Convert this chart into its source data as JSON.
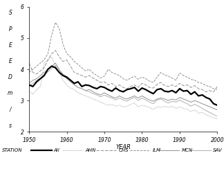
{
  "years": [
    1950,
    1951,
    1952,
    1953,
    1954,
    1955,
    1956,
    1957,
    1958,
    1959,
    1960,
    1961,
    1962,
    1963,
    1964,
    1965,
    1966,
    1967,
    1968,
    1969,
    1970,
    1971,
    1972,
    1973,
    1974,
    1975,
    1976,
    1977,
    1978,
    1979,
    1980,
    1981,
    1982,
    1983,
    1984,
    1985,
    1986,
    1987,
    1988,
    1989,
    1990,
    1991,
    1992,
    1993,
    1994,
    1995,
    1996,
    1997,
    1998,
    1999,
    2000
  ],
  "All": [
    3.5,
    3.45,
    3.6,
    3.7,
    3.8,
    4.0,
    4.1,
    4.05,
    3.9,
    3.8,
    3.75,
    3.65,
    3.55,
    3.6,
    3.45,
    3.5,
    3.48,
    3.42,
    3.38,
    3.45,
    3.42,
    3.35,
    3.3,
    3.4,
    3.32,
    3.28,
    3.35,
    3.38,
    3.42,
    3.3,
    3.4,
    3.35,
    3.28,
    3.22,
    3.35,
    3.38,
    3.3,
    3.28,
    3.32,
    3.25,
    3.38,
    3.3,
    3.32,
    3.2,
    3.28,
    3.15,
    3.18,
    3.1,
    3.05,
    2.9,
    2.85
  ],
  "AHN": [
    3.3,
    3.2,
    3.35,
    3.45,
    4.2,
    4.3,
    4.4,
    4.1,
    3.9,
    3.65,
    3.5,
    3.4,
    3.35,
    3.25,
    3.2,
    3.15,
    3.1,
    3.05,
    3.0,
    2.95,
    2.9,
    2.85,
    2.88,
    2.82,
    2.85,
    2.8,
    2.82,
    2.88,
    2.92,
    2.8,
    2.85,
    2.82,
    2.78,
    2.72,
    2.8,
    2.78,
    2.82,
    2.78,
    2.82,
    2.75,
    2.8,
    2.75,
    2.72,
    2.65,
    2.7,
    2.6,
    2.62,
    2.55,
    2.5,
    2.45,
    2.42
  ],
  "CHS": [
    4.2,
    3.9,
    3.85,
    3.95,
    4.05,
    4.3,
    4.5,
    4.6,
    4.4,
    4.25,
    4.3,
    4.1,
    3.9,
    3.85,
    3.8,
    3.75,
    3.8,
    3.72,
    3.65,
    3.58,
    3.6,
    3.5,
    3.55,
    3.45,
    3.5,
    3.42,
    3.38,
    3.45,
    3.5,
    3.42,
    3.55,
    3.5,
    3.42,
    3.4,
    3.52,
    3.58,
    3.48,
    3.45,
    3.5,
    3.45,
    3.55,
    3.48,
    3.5,
    3.42,
    3.48,
    3.38,
    3.35,
    3.28,
    3.32,
    3.28,
    3.45
  ],
  "ILM": [
    3.9,
    4.0,
    4.1,
    4.2,
    4.3,
    4.5,
    5.1,
    5.5,
    5.3,
    4.8,
    4.5,
    4.4,
    4.25,
    4.15,
    4.05,
    3.95,
    4.0,
    3.88,
    3.8,
    3.72,
    3.78,
    4.0,
    3.9,
    3.85,
    3.8,
    3.7,
    3.65,
    3.72,
    3.78,
    3.68,
    3.75,
    3.7,
    3.62,
    3.58,
    3.75,
    3.9,
    3.82,
    3.78,
    3.72,
    3.65,
    3.88,
    3.8,
    3.75,
    3.68,
    3.65,
    3.58,
    3.55,
    3.48,
    3.45,
    3.38,
    3.35
  ],
  "MCN": [
    3.55,
    3.65,
    3.7,
    3.8,
    3.9,
    4.0,
    4.1,
    4.2,
    4.0,
    3.8,
    3.7,
    3.6,
    3.5,
    3.42,
    3.38,
    3.32,
    3.35,
    3.28,
    3.22,
    3.18,
    3.25,
    3.18,
    3.12,
    3.08,
    3.15,
    3.08,
    3.05,
    3.1,
    3.15,
    3.08,
    3.15,
    3.08,
    3.02,
    2.98,
    3.05,
    3.08,
    3.05,
    3.0,
    3.05,
    3.02,
    3.1,
    3.05,
    3.0,
    2.95,
    3.0,
    2.95,
    2.9,
    2.85,
    2.8,
    2.75,
    2.7
  ],
  "SAV": [
    3.45,
    3.55,
    3.65,
    3.72,
    3.82,
    3.92,
    4.02,
    4.12,
    3.98,
    3.85,
    3.75,
    3.65,
    3.52,
    3.42,
    3.38,
    3.32,
    3.28,
    3.22,
    3.18,
    3.12,
    3.18,
    3.12,
    3.08,
    3.02,
    3.08,
    3.02,
    2.98,
    3.05,
    3.1,
    3.0,
    3.08,
    3.02,
    2.95,
    2.9,
    3.02,
    3.05,
    2.98,
    2.92,
    2.98,
    2.95,
    3.02,
    2.95,
    2.9,
    2.82,
    2.88,
    2.82,
    2.75,
    2.68,
    2.62,
    2.55,
    2.5
  ],
  "ylim": [
    2,
    6
  ],
  "xlim": [
    1950,
    2000
  ],
  "yticks": [
    2,
    3,
    4,
    5,
    6
  ],
  "xticks": [
    1950,
    1960,
    1970,
    1980,
    1990,
    2000
  ],
  "xlabel": "YEAR",
  "ylabel_letters": [
    "S",
    "P",
    "E",
    "E",
    "D",
    "m",
    "/",
    "s"
  ],
  "legend_labels": [
    "STATION",
    "All",
    "AHN",
    "CHS",
    "ILM",
    "MCN",
    "SAV"
  ]
}
